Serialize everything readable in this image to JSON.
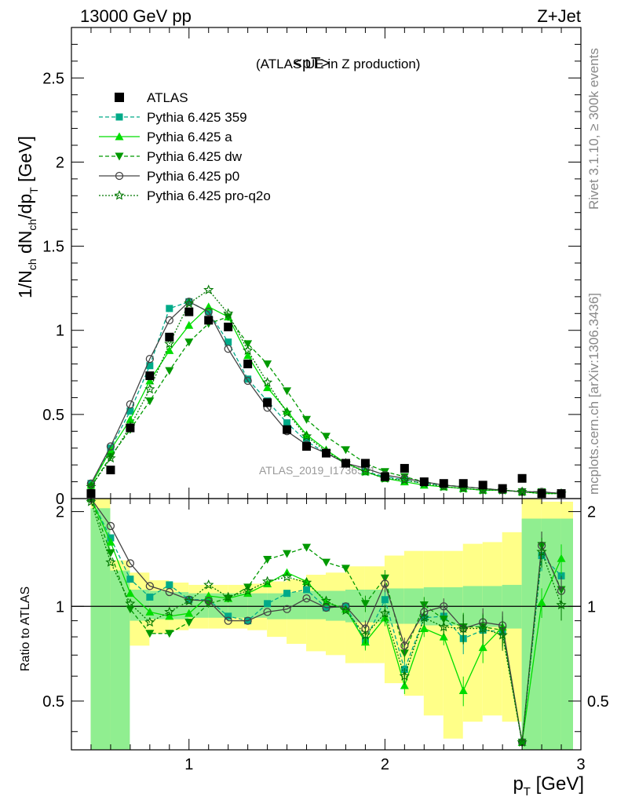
{
  "header": {
    "left": "13000 GeV pp",
    "right": "Z+Jet"
  },
  "plot_title": {
    "main": "<pT>",
    "sub": "(ATLAS UE in Z production)"
  },
  "side_labels": {
    "rivet": "Rivet 3.1.10, ≥ 300k events",
    "mcplots": "mcplots.cern.ch [arXiv:1306.3436]"
  },
  "watermark": "ATLAS_2019_I1736531",
  "colors": {
    "data": "#000000",
    "p359": "#00aa88",
    "pa": "#00dd00",
    "pdw": "#009900",
    "pp0": "#444444",
    "pq2o": "#007700",
    "band_inner": "#90ee90",
    "band_outer": "#ffff88"
  },
  "chart_data": {
    "type": "line",
    "xlabel": "p_T [GeV]",
    "ylabel": "1/N_ch dN_ch/dp_T [GeV]",
    "ratio_ylabel": "Ratio to ATLAS",
    "xlim": [
      0.4,
      3.0
    ],
    "ylim": [
      0,
      2.8
    ],
    "ratio_ylim": [
      0.35,
      2.2
    ],
    "x_ticks": [
      "1",
      "2",
      "3"
    ],
    "y_ticks": [
      "0",
      "0.5",
      "1",
      "1.5",
      "2",
      "2.5"
    ],
    "ratio_ticks": [
      "0.5",
      "1",
      "2"
    ],
    "legend_position": "top-left",
    "x": [
      0.5,
      0.6,
      0.7,
      0.8,
      0.9,
      1.0,
      1.1,
      1.2,
      1.3,
      1.4,
      1.5,
      1.6,
      1.7,
      1.8,
      1.9,
      2.0,
      2.1,
      2.2,
      2.3,
      2.4,
      2.5,
      2.6,
      2.7,
      2.8,
      2.9
    ],
    "data": {
      "name": "ATLAS",
      "values": [
        0.03,
        0.17,
        0.42,
        0.73,
        0.96,
        1.11,
        1.06,
        1.02,
        0.8,
        0.57,
        0.41,
        0.31,
        0.27,
        0.21,
        0.21,
        0.13,
        0.18,
        0.1,
        0.09,
        0.09,
        0.08,
        0.06,
        0.12,
        0.03,
        0.03
      ]
    },
    "series": [
      {
        "name": "Pythia 6.425 359",
        "color": "#00aa88",
        "dash": "5,3",
        "marker": "square",
        "values": [
          0.09,
          0.3,
          0.52,
          0.79,
          1.13,
          1.17,
          1.11,
          0.93,
          0.71,
          0.58,
          0.45,
          0.34,
          0.27,
          0.21,
          0.16,
          0.13,
          0.11,
          0.09,
          0.08,
          0.07,
          0.06,
          0.05,
          0.04,
          0.04,
          0.03
        ]
      },
      {
        "name": "Pythia 6.425 a",
        "color": "#00dd00",
        "dash": "",
        "marker": "triangle-up",
        "values": [
          0.08,
          0.29,
          0.47,
          0.7,
          0.88,
          1.03,
          1.14,
          1.08,
          0.85,
          0.66,
          0.52,
          0.38,
          0.29,
          0.21,
          0.16,
          0.12,
          0.1,
          0.08,
          0.07,
          0.06,
          0.05,
          0.05,
          0.04,
          0.03,
          0.03
        ]
      },
      {
        "name": "Pythia 6.425 dw",
        "color": "#009900",
        "dash": "5,3",
        "marker": "triangle-down",
        "values": [
          0.07,
          0.25,
          0.41,
          0.58,
          0.76,
          0.93,
          1.04,
          1.08,
          0.92,
          0.8,
          0.64,
          0.47,
          0.37,
          0.29,
          0.21,
          0.16,
          0.13,
          0.1,
          0.08,
          0.07,
          0.06,
          0.05,
          0.04,
          0.04,
          0.03
        ]
      },
      {
        "name": "Pythia 6.425 p0",
        "color": "#444444",
        "dash": "",
        "marker": "circle-open",
        "values": [
          0.09,
          0.31,
          0.56,
          0.83,
          1.06,
          1.17,
          1.11,
          0.89,
          0.7,
          0.54,
          0.4,
          0.32,
          0.27,
          0.21,
          0.18,
          0.14,
          0.12,
          0.1,
          0.08,
          0.07,
          0.06,
          0.05,
          0.04,
          0.04,
          0.03
        ]
      },
      {
        "name": "Pythia 6.425 pro-q2o",
        "color": "#007700",
        "dash": "2,2",
        "marker": "star-open",
        "values": [
          0.07,
          0.24,
          0.43,
          0.65,
          0.92,
          1.16,
          1.24,
          1.1,
          0.88,
          0.69,
          0.51,
          0.37,
          0.28,
          0.21,
          0.16,
          0.12,
          0.11,
          0.09,
          0.07,
          0.06,
          0.05,
          0.05,
          0.04,
          0.03,
          0.03
        ]
      }
    ],
    "ratio": {
      "series": [
        {
          "name": "Pythia 6.425 359",
          "values": [
            2.5,
            1.65,
            1.22,
            1.07,
            1.17,
            1.05,
            1.05,
            0.93,
            0.9,
            1.02,
            1.1,
            1.13,
            0.99,
            1.0,
            0.78,
            1.05,
            0.63,
            0.92,
            0.93,
            0.79,
            0.84,
            0.83,
            0.37,
            1.45,
            1.25
          ]
        },
        {
          "name": "Pythia 6.425 a",
          "values": [
            2.5,
            1.6,
            1.1,
            0.96,
            0.93,
            0.95,
            1.08,
            1.06,
            1.1,
            1.18,
            1.28,
            1.2,
            1.03,
            0.98,
            0.77,
            0.92,
            0.56,
            0.85,
            0.8,
            0.54,
            0.74,
            0.86,
            0.37,
            1.03,
            1.42
          ]
        },
        {
          "name": "Pythia 6.425 dw",
          "values": [
            2.3,
            1.48,
            0.98,
            0.82,
            0.82,
            0.89,
            1.02,
            1.06,
            1.15,
            1.41,
            1.47,
            1.54,
            1.38,
            1.32,
            1.02,
            1.23,
            0.71,
            1.01,
            0.91,
            0.86,
            0.86,
            0.84,
            0.37,
            1.56,
            1.13
          ]
        },
        {
          "name": "Pythia 6.425 p0",
          "values": [
            2.5,
            1.8,
            1.37,
            1.16,
            1.11,
            1.05,
            1.04,
            0.9,
            0.9,
            0.96,
            0.98,
            1.06,
            0.99,
            1.0,
            0.85,
            1.18,
            0.75,
            0.96,
            1.0,
            0.85,
            0.89,
            0.87,
            0.37,
            1.56,
            1.12
          ]
        },
        {
          "name": "Pythia 6.425 pro-q2o",
          "values": [
            2.15,
            1.38,
            1.02,
            0.89,
            0.96,
            1.04,
            1.17,
            1.07,
            1.12,
            1.2,
            1.24,
            1.19,
            1.04,
            0.97,
            0.81,
            0.95,
            0.6,
            0.92,
            0.86,
            0.85,
            0.85,
            0.81,
            0.37,
            1.49,
            1.01
          ]
        }
      ],
      "band_inner": {
        "lo": [
          0.35,
          0.35,
          0.9,
          0.91,
          0.91,
          0.92,
          0.92,
          0.92,
          0.92,
          0.91,
          0.91,
          0.91,
          0.9,
          0.89,
          0.89,
          0.88,
          0.88,
          0.87,
          0.87,
          0.86,
          0.86,
          0.85,
          0.35,
          0.35,
          0.35
        ],
        "hi": [
          2.05,
          1.3,
          1.13,
          1.12,
          1.11,
          1.1,
          1.1,
          1.1,
          1.1,
          1.1,
          1.11,
          1.12,
          1.12,
          1.13,
          1.13,
          1.14,
          1.14,
          1.15,
          1.15,
          1.16,
          1.16,
          1.17,
          1.9,
          1.9,
          1.9
        ]
      },
      "band_outer": {
        "lo": [
          0.35,
          0.6,
          0.75,
          0.82,
          0.84,
          0.85,
          0.85,
          0.85,
          0.84,
          0.8,
          0.76,
          0.72,
          0.7,
          0.66,
          0.66,
          0.57,
          0.52,
          0.45,
          0.38,
          0.43,
          0.45,
          0.43,
          0.35,
          0.35,
          0.35
        ],
        "hi": [
          2.2,
          1.4,
          1.28,
          1.21,
          1.19,
          1.17,
          1.17,
          1.17,
          1.18,
          1.2,
          1.22,
          1.26,
          1.28,
          1.34,
          1.34,
          1.45,
          1.5,
          1.5,
          1.5,
          1.58,
          1.6,
          1.72,
          2.2,
          2.15,
          2.15
        ]
      }
    }
  }
}
